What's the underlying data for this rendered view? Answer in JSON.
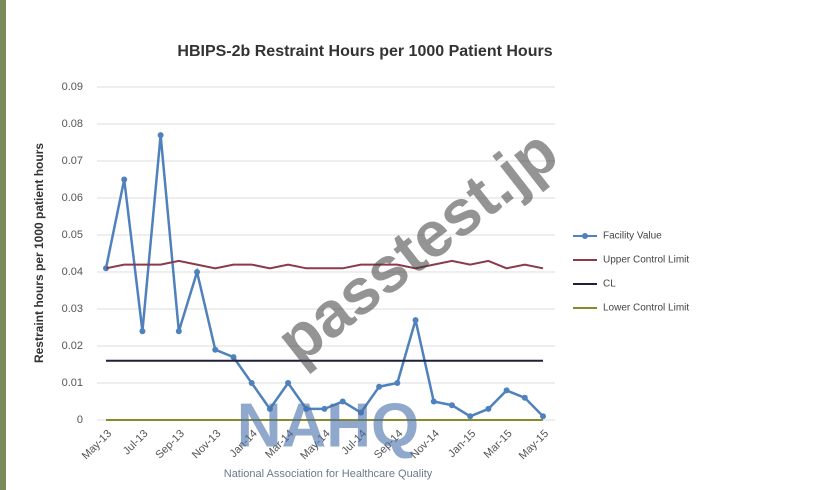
{
  "chart_data": {
    "type": "line",
    "title": "HBIPS-2b Restraint Hours per 1000 Patient Hours",
    "y_label": "Restraint hours per 1000 patient hours",
    "categories": [
      "May-13",
      null,
      "Jul-13",
      null,
      "Sep-13",
      null,
      "Nov-13",
      null,
      "Jan-14",
      null,
      "Mar-14",
      null,
      "May-14",
      null,
      "Jul-14",
      null,
      "Sep-14",
      null,
      "Nov-14",
      null,
      "Jan-15",
      null,
      "Mar-15",
      null,
      "May-15"
    ],
    "series": [
      {
        "name": "Facility Value",
        "color": "#4f81bd",
        "marker": true,
        "values": [
          0.041,
          0.065,
          0.024,
          0.077,
          0.024,
          0.04,
          0.019,
          0.017,
          0.01,
          0.003,
          0.01,
          0.003,
          0.003,
          0.005,
          0.002,
          0.009,
          0.01,
          0.027,
          0.005,
          0.004,
          0.001,
          0.003,
          0.008,
          0.006,
          0.001
        ]
      },
      {
        "name": "Upper Control Limit",
        "color": "#8b3a4a",
        "marker": false,
        "values": [
          0.041,
          0.042,
          0.042,
          0.042,
          0.043,
          0.042,
          0.041,
          0.042,
          0.042,
          0.041,
          0.042,
          0.041,
          0.041,
          0.041,
          0.042,
          0.042,
          0.042,
          0.041,
          0.042,
          0.043,
          0.042,
          0.043,
          0.041,
          0.042,
          0.041
        ]
      },
      {
        "name": "CL",
        "color": "#1f1f3a",
        "marker": false,
        "values": [
          0.016,
          0.016,
          0.016,
          0.016,
          0.016,
          0.016,
          0.016,
          0.016,
          0.016,
          0.016,
          0.016,
          0.016,
          0.016,
          0.016,
          0.016,
          0.016,
          0.016,
          0.016,
          0.016,
          0.016,
          0.016,
          0.016,
          0.016,
          0.016,
          0.016
        ]
      },
      {
        "name": "Lower Control Limit",
        "color": "#8a8a2a",
        "marker": false,
        "values": [
          0,
          0,
          0,
          0,
          0,
          0,
          0,
          0,
          0,
          0,
          0,
          0,
          0,
          0,
          0,
          0,
          0,
          0,
          0,
          0,
          0,
          0,
          0,
          0,
          0
        ]
      }
    ],
    "ylim": [
      0,
      0.09
    ],
    "yticks": [
      0,
      0.01,
      0.02,
      0.03,
      0.04,
      0.05,
      0.06,
      0.07,
      0.08,
      0.09
    ],
    "grid": true,
    "legend": "right",
    "annotations": [
      "passtest.jp",
      "NAHQ",
      "National Association for Healthcare Quality"
    ]
  }
}
